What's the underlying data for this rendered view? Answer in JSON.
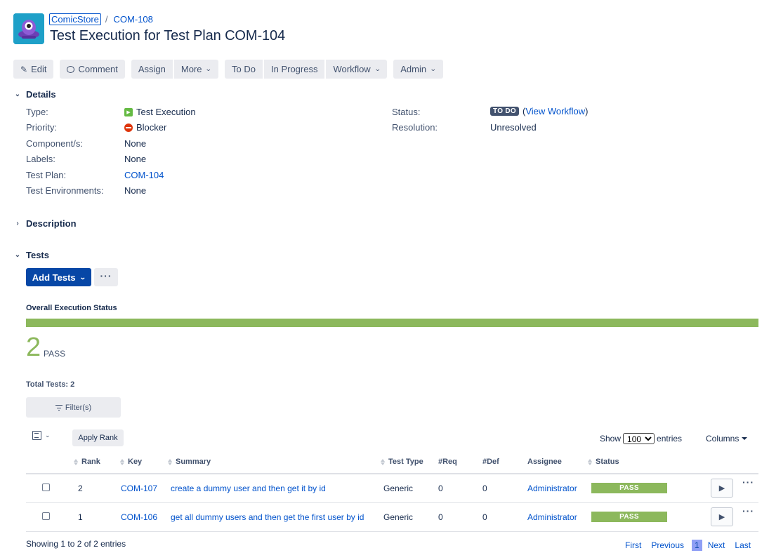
{
  "header": {
    "project": "ComicStore",
    "separator": "/",
    "issue_key": "COM-108",
    "title": "Test Execution for Test Plan COM-104"
  },
  "toolbar": {
    "edit": "Edit",
    "comment": "Comment",
    "assign": "Assign",
    "more": "More",
    "todo": "To Do",
    "in_progress": "In Progress",
    "workflow": "Workflow",
    "admin": "Admin"
  },
  "details": {
    "heading": "Details",
    "type_label": "Type:",
    "type_value": "Test Execution",
    "priority_label": "Priority:",
    "priority_value": "Blocker",
    "components_label": "Component/s:",
    "components_value": "None",
    "labels_label": "Labels:",
    "labels_value": "None",
    "test_plan_label": "Test Plan:",
    "test_plan_value": "COM-104",
    "test_env_label": "Test Environments:",
    "test_env_value": "None",
    "status_label": "Status:",
    "status_value": "TO DO",
    "view_workflow_open": "(",
    "view_workflow": "View Workflow",
    "view_workflow_close": ")",
    "resolution_label": "Resolution:",
    "resolution_value": "Unresolved"
  },
  "description": {
    "heading": "Description"
  },
  "tests": {
    "heading": "Tests",
    "add_tests": "Add Tests",
    "more": "···",
    "overall_label": "Overall Execution Status",
    "pass_fraction": 1.0,
    "pass_count": "2",
    "pass_text": "PASS",
    "total_tests": "Total Tests: 2",
    "filter": "Filter(s)",
    "apply_rank": "Apply Rank",
    "show_label": "Show",
    "show_value": "100",
    "entries_label": "entries",
    "columns": "Columns",
    "headers": {
      "rank": "Rank",
      "key": "Key",
      "summary": "Summary",
      "test_type": "Test Type",
      "req": "#Req",
      "def": "#Def",
      "assignee": "Assignee",
      "status": "Status"
    },
    "rows": [
      {
        "rank": "2",
        "key": "COM-107",
        "summary": "create a dummy user and then get it by id",
        "test_type": "Generic",
        "req": "0",
        "def": "0",
        "assignee": "Administrator",
        "status": "PASS"
      },
      {
        "rank": "1",
        "key": "COM-106",
        "summary": "get all dummy users and then get the first user by id",
        "test_type": "Generic",
        "req": "0",
        "def": "0",
        "assignee": "Administrator",
        "status": "PASS"
      }
    ],
    "showing": "Showing 1 to 2 of 2 entries",
    "pager": {
      "first": "First",
      "previous": "Previous",
      "current": "1",
      "next": "Next",
      "last": "Last"
    }
  },
  "colors": {
    "pass": "#8cb85c",
    "primary": "#0747a6",
    "link": "#0052cc"
  }
}
